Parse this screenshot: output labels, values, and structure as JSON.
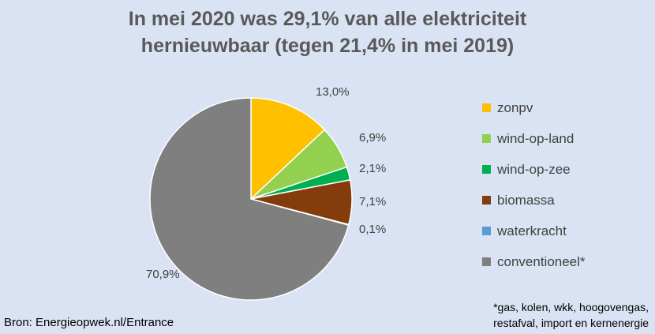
{
  "chart_data": {
    "type": "pie",
    "title_lines": [
      "In mei 2020 was 29,1% van alle elektriciteit",
      "hernieuwbaar (tegen 21,4% in mei 2019)"
    ],
    "slices": [
      {
        "name": "zonpv",
        "value": 13.0,
        "label": "13,0%",
        "color": "#ffc000"
      },
      {
        "name": "wind-op-land",
        "value": 6.9,
        "label": "6,9%",
        "color": "#92d050"
      },
      {
        "name": "wind-op-zee",
        "value": 2.1,
        "label": "2,1%",
        "color": "#00b050"
      },
      {
        "name": "biomassa",
        "value": 7.1,
        "label": "7,1%",
        "color": "#843c0c"
      },
      {
        "name": "waterkracht",
        "value": 0.1,
        "label": "0,1%",
        "color": "#5b9bd5"
      },
      {
        "name": "conventioneel*",
        "value": 70.9,
        "label": "70,9%",
        "color": "#7f7f7f"
      }
    ],
    "legend_position": "right"
  },
  "source": "Bron: Energieopwek.nl/Entrance",
  "footnote_lines": [
    "*gas, kolen, wkk, hoogovengas,",
    "restafval, import en kernenergie"
  ]
}
